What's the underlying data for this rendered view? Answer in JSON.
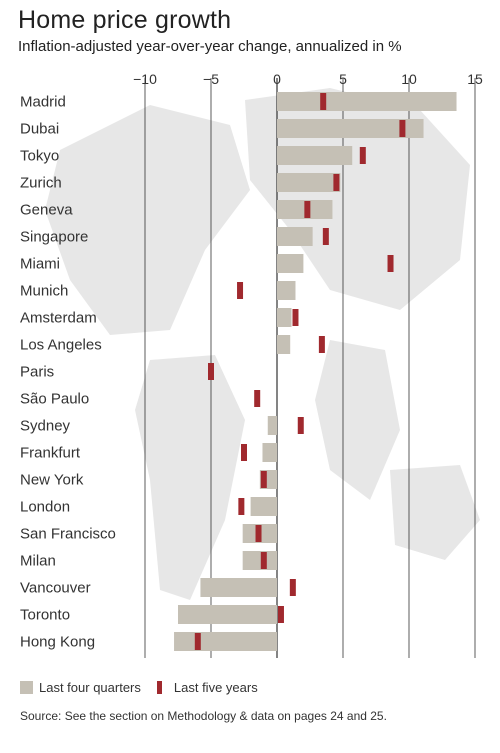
{
  "header": {
    "title": "Home price growth",
    "subtitle": "Inflation-adjusted year-over-year change, annualized in %"
  },
  "legend": {
    "gray_label": "Last four quarters",
    "red_label": "Last five years"
  },
  "source": "Source: See the section on Methodology & data on pages 24 and 25.",
  "colors": {
    "bar": "#c5c0b5",
    "marker": "#a0292e",
    "axis": "#333333",
    "map": "#e7e7e7"
  },
  "chart_data": {
    "type": "bar",
    "orientation": "horizontal",
    "title": "Home price growth",
    "subtitle": "Inflation-adjusted year-over-year change, annualized in %",
    "xlim": [
      -10,
      15
    ],
    "xticks": [
      -10,
      -5,
      0,
      5,
      10,
      15
    ],
    "grid": true,
    "categories": [
      "Madrid",
      "Dubai",
      "Tokyo",
      "Zurich",
      "Geneva",
      "Singapore",
      "Miami",
      "Munich",
      "Amsterdam",
      "Los Angeles",
      "Paris",
      "São Paulo",
      "Sydney",
      "Frankfurt",
      "New York",
      "London",
      "San Francisco",
      "Milan",
      "Vancouver",
      "Toronto",
      "Hong Kong"
    ],
    "series": [
      {
        "name": "Last four quarters",
        "values": [
          13.6,
          11.1,
          5.7,
          4.8,
          4.2,
          2.7,
          2.0,
          1.4,
          1.1,
          1.0,
          0,
          0,
          -0.7,
          -1.1,
          -1.3,
          -2.0,
          -2.6,
          -2.6,
          -5.8,
          -7.5,
          -7.8
        ]
      },
      {
        "name": "Last five years",
        "values": [
          3.5,
          9.5,
          6.5,
          4.5,
          2.3,
          3.7,
          8.6,
          -2.8,
          1.4,
          3.4,
          -5.0,
          -1.5,
          1.8,
          -2.5,
          -1.0,
          -2.7,
          -1.4,
          -1.0,
          1.2,
          0.3,
          -6.0
        ]
      }
    ]
  }
}
